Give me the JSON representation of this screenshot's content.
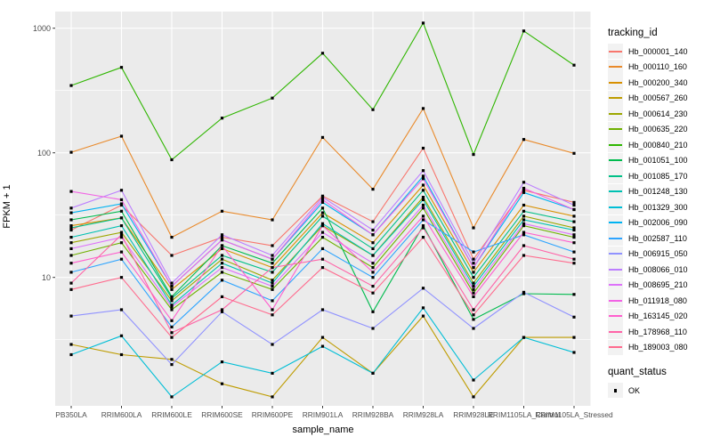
{
  "chart_data": {
    "type": "line",
    "title": "",
    "xlabel": "sample_name",
    "ylabel": "FPKM + 1",
    "y_scale": "log10",
    "y_ticks": [
      10,
      100,
      1000
    ],
    "y_minor_gridlines": [
      3.16,
      31.6,
      316
    ],
    "ylim": [
      0.95,
      1350
    ],
    "grid": "on",
    "panel_bg": "#EBEBEB",
    "grid_color": "#FFFFFF",
    "tick_text_color": "#4D4D4D",
    "marker": {
      "shape": "square",
      "color": "#000000",
      "size": 3.2
    },
    "legend": {
      "title": "tracking_id",
      "position": "right"
    },
    "legend2": {
      "title": "quant_status",
      "items": [
        {
          "label": "OK",
          "marker": "black-square"
        }
      ]
    },
    "categories": [
      "PB350LA",
      "RRIM600LA",
      "RRIM600LE",
      "RRIM600SE",
      "RRIM600PE",
      "RRIM901LA",
      "RRIM928BA",
      "RRIM928LA",
      "RRIM928LE",
      "RRIM1105LA_Control",
      "RRIM1105LA_Stressed"
    ],
    "series": [
      {
        "name": "Hb_000001_140",
        "color": "#F8766D",
        "values": [
          24,
          38,
          15,
          21,
          18,
          45,
          28,
          109,
          14,
          50,
          40
        ]
      },
      {
        "name": "Hb_000110_160",
        "color": "#E98A2B",
        "values": [
          101,
          136,
          21,
          34,
          29,
          133,
          51,
          227,
          25,
          128,
          99
        ]
      },
      {
        "name": "Hb_000200_340",
        "color": "#D89000",
        "values": [
          26,
          30,
          8,
          17,
          12,
          33,
          19,
          55,
          11,
          38,
          31
        ]
      },
      {
        "name": "Hb_000567_260",
        "color": "#BE9C00",
        "values": [
          2.9,
          2.4,
          2.2,
          1.4,
          1.1,
          3.3,
          1.7,
          4.9,
          1.1,
          3.3,
          3.3
        ]
      },
      {
        "name": "Hb_000614_230",
        "color": "#9CA700",
        "values": [
          19,
          23,
          6.5,
          14,
          9.5,
          26,
          15,
          44,
          9,
          31,
          25
        ]
      },
      {
        "name": "Hb_000635_220",
        "color": "#6FB000",
        "values": [
          15,
          19,
          5.5,
          11,
          8,
          21,
          12,
          36,
          7.5,
          26,
          21
        ]
      },
      {
        "name": "Hb_000840_210",
        "color": "#2FB600",
        "values": [
          347,
          485,
          88,
          190,
          275,
          630,
          222,
          1100,
          97,
          950,
          505
        ]
      },
      {
        "name": "Hb_001051_100",
        "color": "#00BB4E",
        "values": [
          29,
          34,
          7,
          18,
          13,
          36,
          5.3,
          26,
          4.6,
          7.4,
          7.3
        ]
      },
      {
        "name": "Hb_001085_170",
        "color": "#00C087",
        "values": [
          25,
          30,
          6.8,
          15,
          11,
          31,
          17,
          50,
          10,
          34,
          28
        ]
      },
      {
        "name": "Hb_001248_130",
        "color": "#00C1B2",
        "values": [
          21,
          26,
          6,
          13,
          9,
          27,
          15,
          42,
          8.5,
          29,
          24
        ]
      },
      {
        "name": "Hb_001329_300",
        "color": "#00BED6",
        "values": [
          2.4,
          3.4,
          1.1,
          2.1,
          1.7,
          2.8,
          1.7,
          5.7,
          1.5,
          3.3,
          2.5
        ]
      },
      {
        "name": "Hb_002006_090",
        "color": "#00B3F2",
        "values": [
          33,
          39,
          8.5,
          20,
          14,
          40,
          22,
          65,
          12,
          48,
          35
        ]
      },
      {
        "name": "Hb_002587_110",
        "color": "#2DA4FF",
        "values": [
          11,
          14,
          4,
          9.5,
          6.5,
          17,
          10,
          29,
          16,
          22,
          16
        ]
      },
      {
        "name": "Hb_006915_050",
        "color": "#9092FF",
        "values": [
          4.9,
          5.5,
          2.0,
          5.3,
          2.9,
          5.5,
          3.9,
          8.2,
          3.9,
          7.6,
          4.8
        ]
      },
      {
        "name": "Hb_008066_010",
        "color": "#BC7EFF",
        "values": [
          36,
          50,
          9,
          22,
          15,
          44,
          24,
          72,
          13,
          58,
          38
        ]
      },
      {
        "name": "Hb_008695_210",
        "color": "#DD71FA",
        "values": [
          17,
          21,
          5.8,
          12,
          8.5,
          23,
          13,
          38,
          8,
          27,
          22
        ]
      },
      {
        "name": "Hb_011918_080",
        "color": "#F263E5",
        "values": [
          49,
          42,
          8.5,
          20,
          14,
          42,
          22,
          62,
          12,
          52,
          35
        ]
      },
      {
        "name": "Hb_163145_020",
        "color": "#FF5FCE",
        "values": [
          13,
          16,
          4.5,
          18,
          5.5,
          26,
          11,
          31,
          7,
          23,
          19
        ]
      },
      {
        "name": "Hb_178968_110",
        "color": "#FF64A8",
        "values": [
          9,
          22,
          3.6,
          5.5,
          12,
          14,
          8.5,
          25,
          5.5,
          18,
          14
        ]
      },
      {
        "name": "Hb_189003_080",
        "color": "#FF6B8E",
        "values": [
          8,
          10,
          3.3,
          7,
          5,
          12,
          7.5,
          21,
          5,
          15,
          13
        ]
      }
    ]
  }
}
